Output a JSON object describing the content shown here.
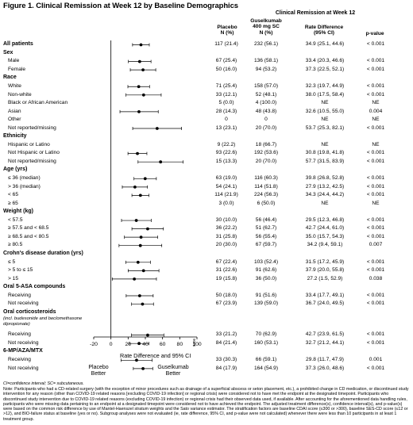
{
  "title": "Figure 1. Clinical Remission at Week 12 by Baseline Demographics",
  "header": {
    "group": "Clinical Remission at Week 12",
    "placebo": [
      "Placebo",
      "N (%)"
    ],
    "guselkumab": [
      "Guselkumab",
      "400 mg SC",
      "N (%)"
    ],
    "rd": [
      "Rate Difference",
      "(95% CI)"
    ],
    "p": "p-value"
  },
  "rows": [
    {
      "label": "All patients",
      "type": "section",
      "pl": "117 (21.4)",
      "gu": "232 (56.1)",
      "rd": "34.9  (25.1, 44.6)",
      "p": "< 0.001"
    },
    {
      "label": "Sex",
      "type": "heading"
    },
    {
      "label": "Male",
      "type": "item",
      "pl": "67 (25.4)",
      "gu": "136 (58.1)",
      "rd": "33.4  (20.3, 46.6)",
      "p": "< 0.001"
    },
    {
      "label": "Female",
      "type": "item",
      "pl": "50 (16.0)",
      "gu": "94 (53.2)",
      "rd": "37.3  (22.5, 52.1)",
      "p": "< 0.001"
    },
    {
      "label": "Race",
      "type": "heading"
    },
    {
      "label": "White",
      "type": "item",
      "pl": "71 (25.4)",
      "gu": "158 (57.0)",
      "rd": "32.3  (19.7, 44.9)",
      "p": "< 0.001"
    },
    {
      "label": "Non-white",
      "type": "item",
      "pl": "33 (12.1)",
      "gu": "52 (48.1)",
      "rd": "38.0  (17.5, 58.4)",
      "p": "< 0.001"
    },
    {
      "label": "Black or African American",
      "type": "item",
      "pl": "5 (0.0)",
      "gu": "4 (100.0)",
      "rd": "NE",
      "p": "NE"
    },
    {
      "label": "Asian",
      "type": "item",
      "pl": "28 (14.3)",
      "gu": "48 (43.8)",
      "rd": "32.6  (10.5, 55.0)",
      "p": "0.004"
    },
    {
      "label": "Other",
      "type": "item",
      "pl": "0",
      "gu": "0",
      "rd": "NE",
      "p": "NE"
    },
    {
      "label": "Not reported/missing",
      "type": "item",
      "pl": "13 (23.1)",
      "gu": "20 (70.0)",
      "rd": "53.7  (25.3, 82.1)",
      "p": "< 0.001"
    },
    {
      "label": "Ethnicity",
      "type": "heading"
    },
    {
      "label": "Hispanic or Latino",
      "type": "item",
      "pl": "9 (22.2)",
      "gu": "18 (66.7)",
      "rd": "NE",
      "p": "NE"
    },
    {
      "label": "Not Hispanic or Latino",
      "type": "item",
      "pl": "93 (22.6)",
      "gu": "192 (53.6)",
      "rd": "30.8  (19.8, 41.8)",
      "p": "< 0.001"
    },
    {
      "label": "Not reported/missing",
      "type": "item",
      "pl": "15 (13.3)",
      "gu": "20 (70.0)",
      "rd": "57.7  (31.5, 83.9)",
      "p": "< 0.001"
    },
    {
      "label": "Age (yrs)",
      "type": "heading"
    },
    {
      "label": "≤ 36 (median)",
      "type": "item",
      "pl": "63 (19.0)",
      "gu": "116 (60.3)",
      "rd": "39.8  (26.8, 52.8)",
      "p": "< 0.001"
    },
    {
      "label": "> 36 (median)",
      "type": "item",
      "pl": "54 (24.1)",
      "gu": "114 (51.8)",
      "rd": "27.9  (13.2, 42.5)",
      "p": "< 0.001"
    },
    {
      "label": "< 65",
      "type": "item",
      "pl": "114 (21.9)",
      "gu": "224 (56.3)",
      "rd": "34.3  (24.4, 44.2)",
      "p": "< 0.001"
    },
    {
      "label": "≥ 65",
      "type": "item",
      "pl": "3 (0.0)",
      "gu": "6 (50.0)",
      "rd": "NE",
      "p": "NE"
    },
    {
      "label": "Weight (kg)",
      "type": "heading"
    },
    {
      "label": "< 57.5",
      "type": "item",
      "pl": "30 (10.0)",
      "gu": "56 (46.4)",
      "rd": "29.5  (12.3, 46.8)",
      "p": "< 0.001"
    },
    {
      "label": "≥ 57.5 and < 68.5",
      "type": "item",
      "pl": "36 (22.2)",
      "gu": "51 (62.7)",
      "rd": "42.7  (24.4, 61.0)",
      "p": "< 0.001"
    },
    {
      "label": "≥ 68.5 and < 80.5",
      "type": "item",
      "pl": "31 (25.8)",
      "gu": "56 (55.4)",
      "rd": "35.0  (15.7, 54.3)",
      "p": "< 0.001"
    },
    {
      "label": "≥ 80.5",
      "type": "item",
      "pl": "20 (30.0)",
      "gu": "67 (59.7)",
      "rd": "34.2  (9.4, 59.1)",
      "p": "0.007"
    },
    {
      "label": "Crohn's disease duration (yrs)",
      "type": "heading"
    },
    {
      "label": "≤ 5",
      "type": "item",
      "pl": "67 (22.4)",
      "gu": "103 (52.4)",
      "rd": "31.5  (17.2, 45.9)",
      "p": "< 0.001"
    },
    {
      "label": "> 5 to ≤ 15",
      "type": "item",
      "pl": "31 (22.6)",
      "gu": "91 (62.6)",
      "rd": "37.9  (20.0, 55.8)",
      "p": "< 0.001"
    },
    {
      "label": "> 15",
      "type": "item",
      "pl": "19 (15.8)",
      "gu": "36 (50.0)",
      "rd": "27.2  (1.5, 52.9)",
      "p": "0.038"
    },
    {
      "label": "Oral 5-ASA compounds",
      "type": "heading"
    },
    {
      "label": "Receiving",
      "type": "item",
      "pl": "50 (18.0)",
      "gu": "91 (51.6)",
      "rd": "33.4  (17.7, 49.1)",
      "p": "< 0.001"
    },
    {
      "label": "Not receiving",
      "type": "item",
      "pl": "67 (23.9)",
      "gu": "139 (59.0)",
      "rd": "36.7  (24.0, 49.5)",
      "p": "< 0.001"
    },
    {
      "label": "Oral corticosteroids",
      "type": "heading",
      "note": "(incl. budesonide and beclomethasone dipropionate)"
    },
    {
      "label": "Receiving",
      "type": "item",
      "pl": "33 (21.2)",
      "gu": "70 (62.9)",
      "rd": "42.7  (23.9, 61.5)",
      "p": "< 0.001"
    },
    {
      "label": "Not receiving",
      "type": "item",
      "pl": "84 (21.4)",
      "gu": "160 (53.1)",
      "rd": "32.7  (21.2, 44.1)",
      "p": "< 0.001"
    },
    {
      "label": "6-MP/AZA/MTX",
      "type": "heading"
    },
    {
      "label": "Receiving",
      "type": "item",
      "pl": "33 (30.3)",
      "gu": "66 (59.1)",
      "rd": "29.8  (11.7, 47.9)",
      "p": "0.001"
    },
    {
      "label": "Not receiving",
      "type": "item",
      "pl": "84 (17.9)",
      "gu": "164 (54.9)",
      "rd": "37.3  (26.0, 48.6)",
      "p": "< 0.001"
    }
  ],
  "chart_data": {
    "type": "forest",
    "xlim": [
      -20,
      100
    ],
    "ticks": [
      "-20",
      "0",
      "20",
      "40",
      "60",
      "80",
      "100"
    ],
    "xlabel": "Rate Difference and 95% CI",
    "favors_left": "Placebo Better",
    "favors_right": "Guselkumab Better",
    "figure_id": "5406",
    "estimates": [
      {
        "row": 0,
        "est": 34.9,
        "lo": 25.1,
        "hi": 44.6
      },
      {
        "row": 2,
        "est": 33.4,
        "lo": 20.3,
        "hi": 46.6
      },
      {
        "row": 3,
        "est": 37.3,
        "lo": 22.5,
        "hi": 52.1
      },
      {
        "row": 5,
        "est": 32.3,
        "lo": 19.7,
        "hi": 44.9
      },
      {
        "row": 6,
        "est": 38.0,
        "lo": 17.5,
        "hi": 58.4
      },
      {
        "row": 8,
        "est": 32.6,
        "lo": 10.5,
        "hi": 55.0
      },
      {
        "row": 10,
        "est": 53.7,
        "lo": 25.3,
        "hi": 82.1
      },
      {
        "row": 13,
        "est": 30.8,
        "lo": 19.8,
        "hi": 41.8
      },
      {
        "row": 14,
        "est": 57.7,
        "lo": 31.5,
        "hi": 83.9
      },
      {
        "row": 16,
        "est": 39.8,
        "lo": 26.8,
        "hi": 52.8
      },
      {
        "row": 17,
        "est": 27.9,
        "lo": 13.2,
        "hi": 42.5
      },
      {
        "row": 18,
        "est": 34.3,
        "lo": 24.4,
        "hi": 44.2
      },
      {
        "row": 21,
        "est": 29.5,
        "lo": 12.3,
        "hi": 46.8
      },
      {
        "row": 22,
        "est": 42.7,
        "lo": 24.4,
        "hi": 61.0
      },
      {
        "row": 23,
        "est": 35.0,
        "lo": 15.7,
        "hi": 54.3
      },
      {
        "row": 24,
        "est": 34.2,
        "lo": 9.4,
        "hi": 59.1
      },
      {
        "row": 26,
        "est": 31.5,
        "lo": 17.2,
        "hi": 45.9
      },
      {
        "row": 27,
        "est": 37.9,
        "lo": 20.0,
        "hi": 55.8
      },
      {
        "row": 28,
        "est": 27.2,
        "lo": 1.5,
        "hi": 52.9
      },
      {
        "row": 30,
        "est": 33.4,
        "lo": 17.7,
        "hi": 49.1
      },
      {
        "row": 31,
        "est": 36.7,
        "lo": 24.0,
        "hi": 49.5
      },
      {
        "row": 33,
        "est": 42.7,
        "lo": 23.9,
        "hi": 61.5
      },
      {
        "row": 34,
        "est": 32.7,
        "lo": 21.2,
        "hi": 44.1
      },
      {
        "row": 36,
        "est": 29.8,
        "lo": 11.7,
        "hi": 47.9
      },
      {
        "row": 37,
        "est": 37.3,
        "lo": 26.0,
        "hi": 48.6
      }
    ]
  },
  "footnote": {
    "abbr": "CI=confidence interval; SC= subcutaneous.",
    "text": "Note: Participants who had a CD-related surgery (with the exception of minor procedures such as drainage of a superficial abscess or seton placement, etc.), a prohibited change in CD medication, or discontinued study intervention for any reason (other than COVID-19 related reasons [excluding COVID-19 infection] or regional crisis) were considered not to have met the endpoint at the designated timepoint. Participants who discontinued study intervention due to COVID-19 related reasons (excluding COVID-19 infection) or regional crisis had their observed data used, if available. After accounting for the aforementioned data handling rules, participants who were missing data pertaining to an endpoint at a designated timepoint were considered not to have achieved the endpoint. The adjusted treatment difference(s), confidence interval(s), and p-value(s) were based on the common risk difference by use of Mantel-Haenszel stratum weights and the Sato variance estimator. The stratification factors are baseline CDAI score (≤300 or >300), baseline SES-CD score (≤12 or >12), and BIO-failure status at baseline (yes or no). Subgroup analyses were not evaluated (ie, rate difference, 95% CI, and p-value were not calculated) whenever there were less than 10 participants in at least 1 treatment group."
  }
}
